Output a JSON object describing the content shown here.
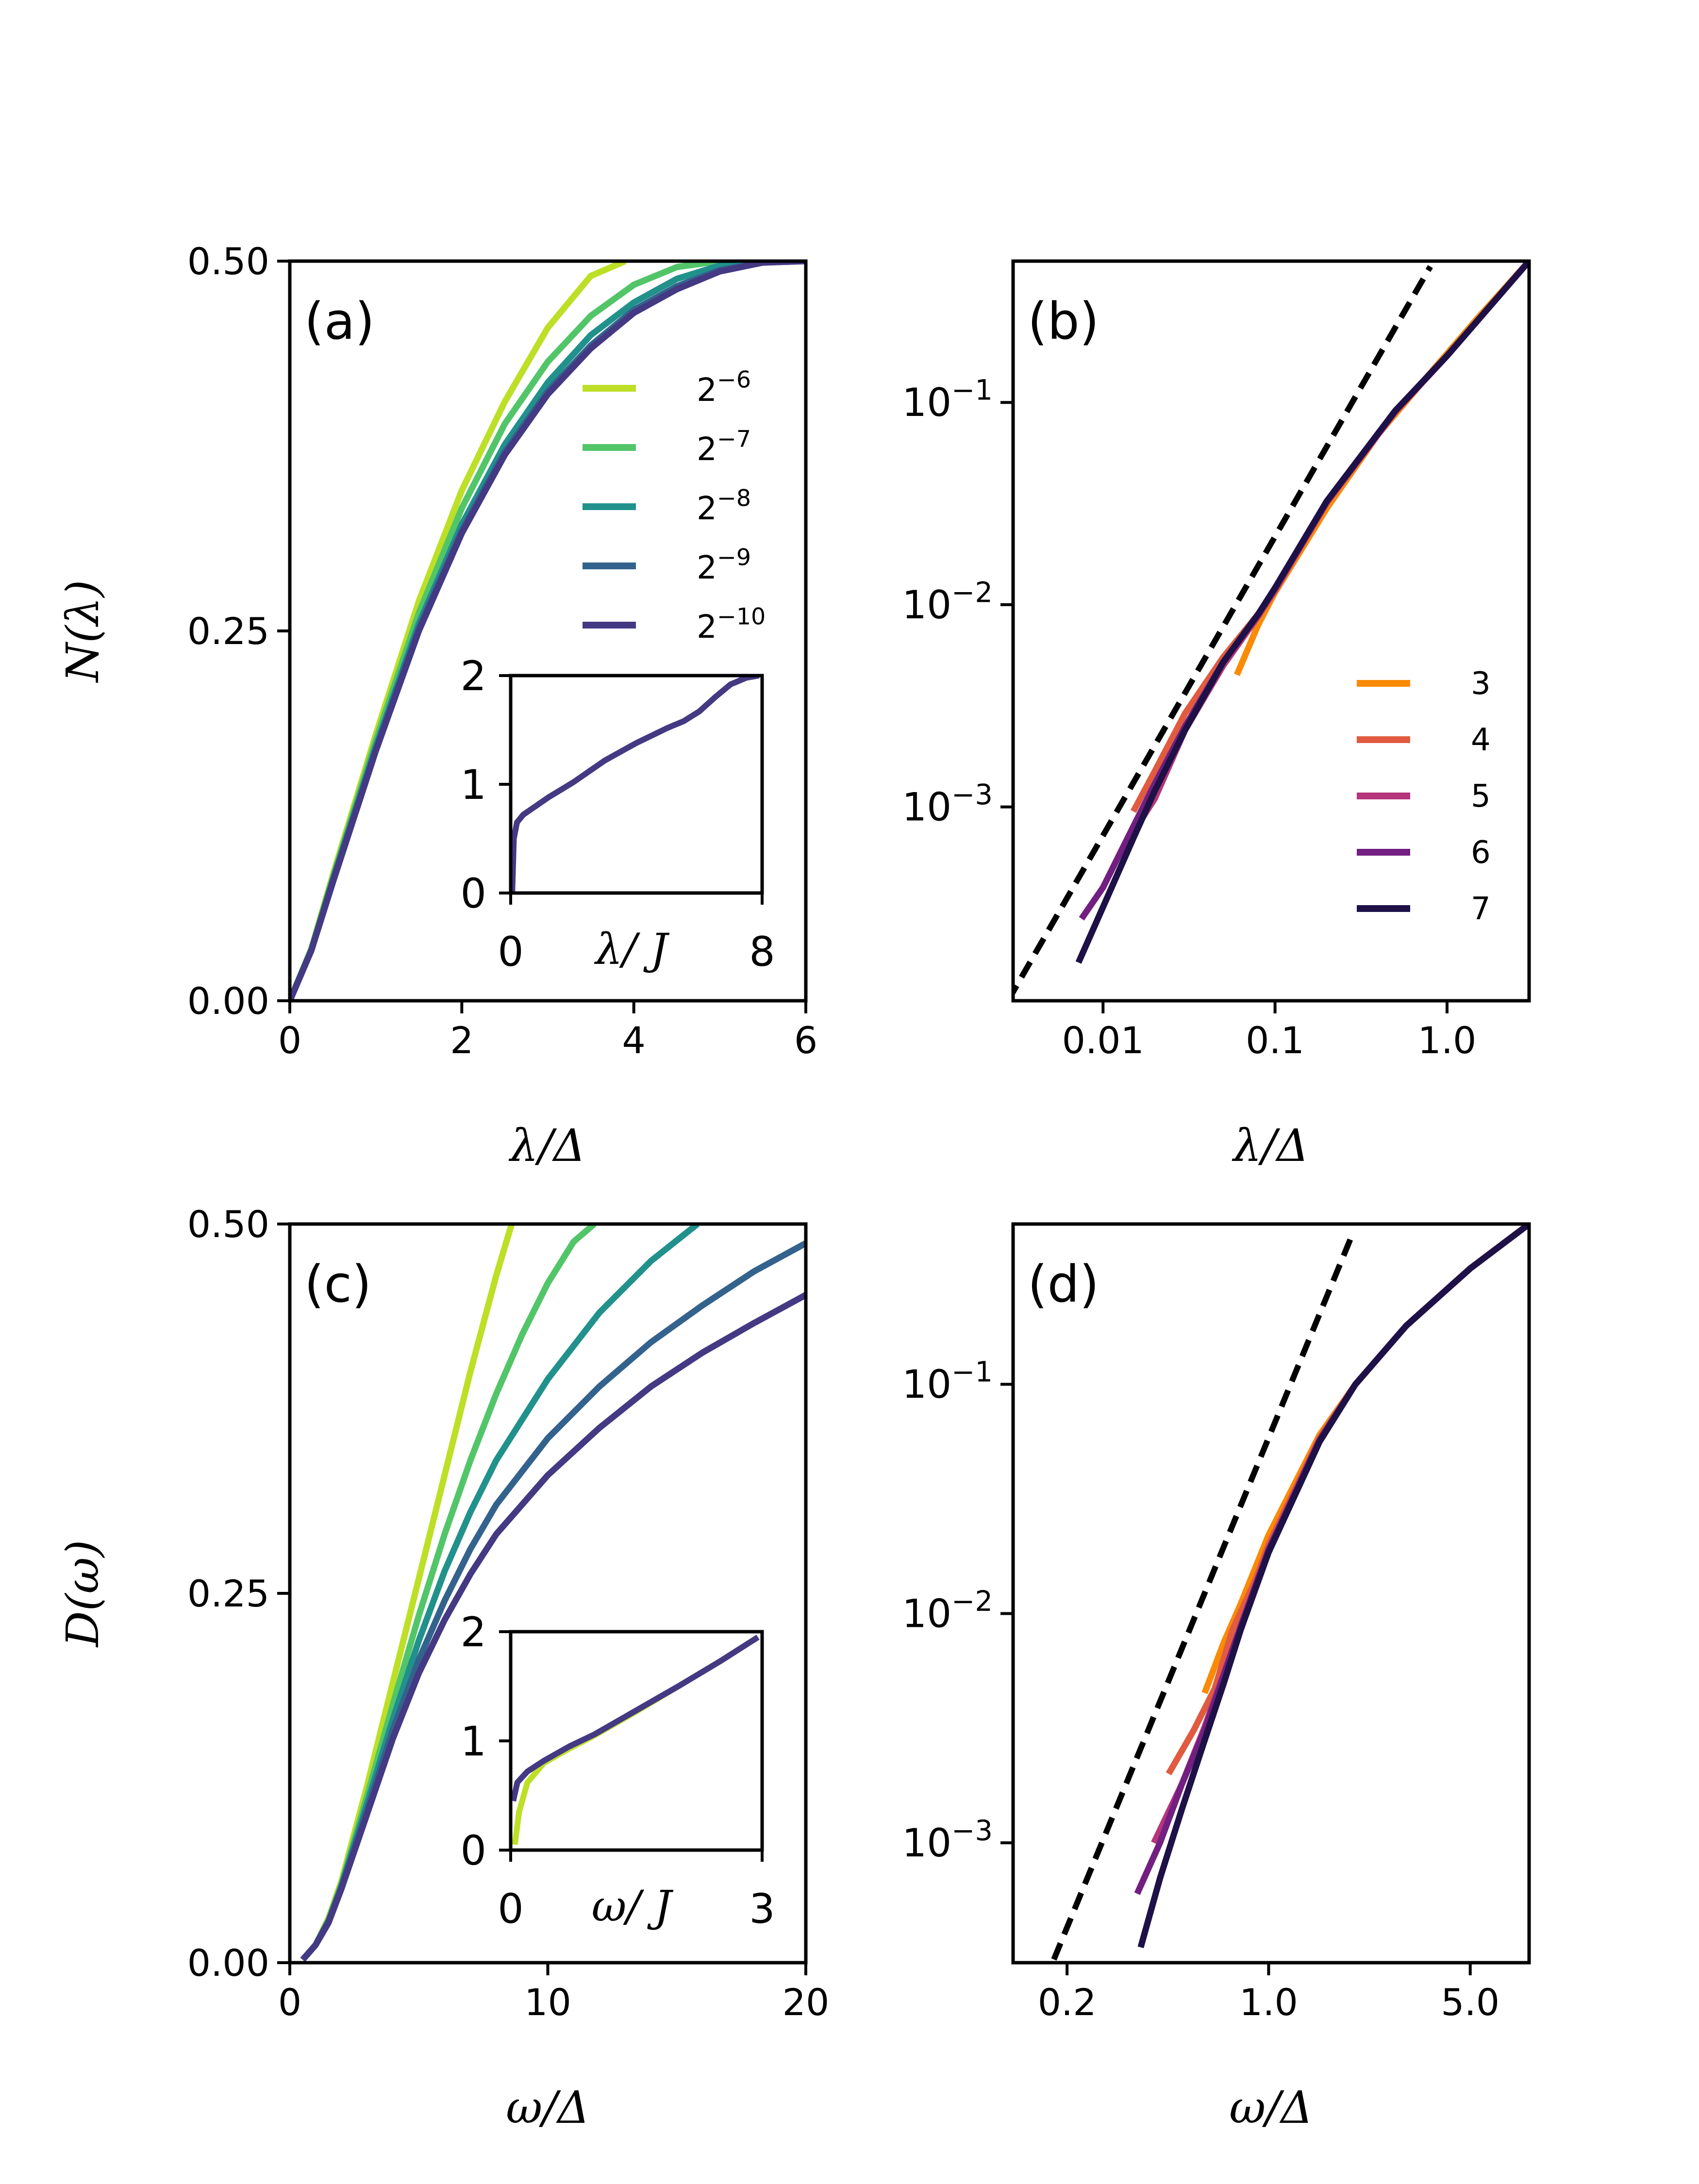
{
  "figure": {
    "panels": [
      {
        "id": "a",
        "panel_label": "(a)",
        "type": "line",
        "xscale": "linear",
        "yscale": "linear",
        "xlim": [
          0,
          6
        ],
        "ylim": [
          0,
          0.5
        ],
        "xticks": [
          0,
          2,
          4,
          6
        ],
        "xtick_labels": [
          "0",
          "2",
          "4",
          "6"
        ],
        "yticks": [
          0,
          0.25,
          0.5
        ],
        "ytick_labels": [
          "0.00",
          "0.25",
          "0.50"
        ],
        "xlabel": "λ/Δ",
        "ylabel": "N(λ)",
        "legend_position": "upper-right",
        "series": [
          {
            "name": "2^-6",
            "color": "#bddf26",
            "x": [
              0,
              0.25,
              0.5,
              1.0,
              1.5,
              2.0,
              2.5,
              3.0,
              3.5,
              3.9
            ],
            "y": [
              0,
              0.035,
              0.085,
              0.18,
              0.27,
              0.345,
              0.405,
              0.455,
              0.49,
              0.5
            ]
          },
          {
            "name": "2^-7",
            "color": "#52c569",
            "x": [
              0,
              0.25,
              0.5,
              1.0,
              1.5,
              2.0,
              2.5,
              3.0,
              3.5,
              4.0,
              4.5,
              5.0
            ],
            "y": [
              0,
              0.035,
              0.083,
              0.176,
              0.262,
              0.333,
              0.39,
              0.432,
              0.463,
              0.484,
              0.496,
              0.5
            ]
          },
          {
            "name": "2^-8",
            "color": "#21918c",
            "x": [
              0,
              0.25,
              0.5,
              1.0,
              1.5,
              2.0,
              2.5,
              3.0,
              3.5,
              4.0,
              4.5,
              5.0,
              5.5
            ],
            "y": [
              0,
              0.034,
              0.082,
              0.172,
              0.255,
              0.322,
              0.376,
              0.418,
              0.45,
              0.472,
              0.488,
              0.497,
              0.5
            ]
          },
          {
            "name": "2^-9",
            "color": "#33638d",
            "x": [
              0,
              0.25,
              0.5,
              1.0,
              1.5,
              2.0,
              2.5,
              3.0,
              3.5,
              4.0,
              4.5,
              5.0,
              5.5,
              6.0
            ],
            "y": [
              0,
              0.034,
              0.081,
              0.17,
              0.252,
              0.318,
              0.371,
              0.412,
              0.443,
              0.467,
              0.483,
              0.494,
              0.499,
              0.5
            ]
          },
          {
            "name": "2^-10",
            "color": "#443983",
            "x": [
              0,
              0.25,
              0.5,
              1.0,
              1.5,
              2.0,
              2.5,
              3.0,
              3.5,
              4.0,
              4.5,
              5.0,
              5.5,
              6.0
            ],
            "y": [
              0,
              0.034,
              0.08,
              0.169,
              0.25,
              0.316,
              0.369,
              0.41,
              0.441,
              0.465,
              0.481,
              0.493,
              0.499,
              0.5
            ]
          }
        ],
        "inset": {
          "xlim": [
            0,
            8
          ],
          "ylim": [
            0,
            2
          ],
          "xticks": [
            0,
            8
          ],
          "xtick_labels": [
            "0",
            "8"
          ],
          "yticks": [
            0,
            1,
            2
          ],
          "ytick_labels": [
            "0",
            "1",
            "2"
          ],
          "xlabel": "λ/ J",
          "series": [
            {
              "color": "#443983",
              "x": [
                0.05,
                0.1,
                0.2,
                0.4,
                0.8,
                1.2,
                1.6,
                2.0,
                2.5,
                3.0,
                3.5,
                4.0,
                4.5,
                5.0,
                5.5,
                6.0,
                6.5,
                7.0,
                7.5,
                7.9
              ],
              "y": [
                0,
                0.5,
                0.65,
                0.72,
                0.8,
                0.88,
                0.95,
                1.02,
                1.12,
                1.22,
                1.3,
                1.38,
                1.45,
                1.52,
                1.58,
                1.67,
                1.8,
                1.92,
                1.98,
                2.0
              ]
            }
          ]
        }
      },
      {
        "id": "b",
        "panel_label": "(b)",
        "type": "line",
        "xscale": "log",
        "yscale": "log",
        "xlim": [
          0.003,
          3.0
        ],
        "ylim": [
          0.00011,
          0.5
        ],
        "xticks": [
          0.01,
          0.1,
          1.0
        ],
        "xtick_labels": [
          "0.01",
          "0.1",
          "1.0"
        ],
        "yticks": [
          0.001,
          0.01,
          0.1
        ],
        "ytick_labels": [
          {
            "base": "10",
            "exp": "−3"
          },
          {
            "base": "10",
            "exp": "−2"
          },
          {
            "base": "10",
            "exp": "−1"
          }
        ],
        "xlabel": "λ/Δ",
        "legend_position": "lower-right",
        "reference_line": {
          "style": "dashed",
          "color": "#000000",
          "x": [
            0.0028,
            0.8
          ],
          "y": [
            0.00011,
            0.47
          ]
        },
        "series": [
          {
            "name": "3",
            "color": "#fb8a06",
            "x": [
              0.06,
              0.08,
              0.1,
              0.2,
              0.4,
              0.8,
              1.5,
              3.0
            ],
            "y": [
              0.0045,
              0.008,
              0.0115,
              0.03,
              0.07,
              0.14,
              0.26,
              0.5
            ]
          },
          {
            "name": "4",
            "color": "#e05b3f",
            "x": [
              0.015,
              0.02,
              0.03,
              0.05,
              0.08,
              0.1,
              0.2,
              0.5,
              1.0,
              3.0
            ],
            "y": [
              0.00095,
              0.0015,
              0.0029,
              0.0055,
              0.009,
              0.012,
              0.032,
              0.09,
              0.17,
              0.5
            ]
          },
          {
            "name": "5",
            "color": "#b5367a",
            "x": [
              0.015,
              0.02,
              0.03,
              0.05,
              0.08,
              0.1,
              0.2,
              0.5,
              1.0,
              3.0
            ],
            "y": [
              0.00075,
              0.0011,
              0.0024,
              0.005,
              0.0088,
              0.0118,
              0.032,
              0.09,
              0.17,
              0.5
            ]
          },
          {
            "name": "6",
            "color": "#721f81",
            "x": [
              0.0075,
              0.01,
              0.015,
              0.02,
              0.03,
              0.05,
              0.08,
              0.1,
              0.2,
              0.5,
              1.0,
              3.0
            ],
            "y": [
              0.00028,
              0.0004,
              0.0008,
              0.0013,
              0.0025,
              0.0052,
              0.009,
              0.0121,
              0.0325,
              0.091,
              0.17,
              0.5
            ]
          },
          {
            "name": "7",
            "color": "#1d1147",
            "x": [
              0.0072,
              0.01,
              0.015,
              0.02,
              0.03,
              0.05,
              0.08,
              0.1,
              0.2,
              0.5,
              1.0,
              3.0
            ],
            "y": [
              0.00017,
              0.00032,
              0.0007,
              0.0012,
              0.0024,
              0.0052,
              0.009,
              0.0121,
              0.0325,
              0.091,
              0.17,
              0.5
            ]
          }
        ]
      },
      {
        "id": "c",
        "panel_label": "(c)",
        "type": "line",
        "xscale": "linear",
        "yscale": "linear",
        "xlim": [
          0,
          20
        ],
        "ylim": [
          0,
          0.5
        ],
        "xticks": [
          0,
          10,
          20
        ],
        "xtick_labels": [
          "0",
          "10",
          "20"
        ],
        "yticks": [
          0,
          0.25,
          0.5
        ],
        "ytick_labels": [
          "0.00",
          "0.25",
          "0.50"
        ],
        "xlabel": "ω/Δ",
        "ylabel": "D(ω)",
        "series": [
          {
            "name": "2^-6",
            "color": "#bddf26",
            "x": [
              0.5,
              1,
              1.5,
              2,
              3,
              4,
              5,
              6,
              7,
              8,
              8.6
            ],
            "y": [
              0.002,
              0.012,
              0.03,
              0.055,
              0.12,
              0.19,
              0.26,
              0.33,
              0.4,
              0.465,
              0.5
            ]
          },
          {
            "name": "2^-7",
            "color": "#52c569",
            "x": [
              0.5,
              1,
              1.5,
              2,
              3,
              4,
              5,
              6,
              7,
              8,
              9,
              10,
              11,
              11.8
            ],
            "y": [
              0.002,
              0.012,
              0.029,
              0.053,
              0.113,
              0.175,
              0.235,
              0.29,
              0.34,
              0.385,
              0.425,
              0.46,
              0.488,
              0.5
            ]
          },
          {
            "name": "2^-8",
            "color": "#21918c",
            "x": [
              0.5,
              1,
              1.5,
              2,
              3,
              4,
              5,
              6,
              7,
              8,
              10,
              12,
              14,
              15.8
            ],
            "y": [
              0.002,
              0.012,
              0.028,
              0.052,
              0.108,
              0.165,
              0.218,
              0.265,
              0.305,
              0.34,
              0.395,
              0.44,
              0.475,
              0.5
            ]
          },
          {
            "name": "2^-9",
            "color": "#33638d",
            "x": [
              0.5,
              1,
              1.5,
              2,
              3,
              4,
              5,
              6,
              7,
              8,
              10,
              12,
              14,
              16,
              18,
              20
            ],
            "y": [
              0.002,
              0.012,
              0.028,
              0.051,
              0.104,
              0.158,
              0.205,
              0.245,
              0.28,
              0.31,
              0.355,
              0.39,
              0.42,
              0.445,
              0.468,
              0.487
            ]
          },
          {
            "name": "2^-10",
            "color": "#443983",
            "x": [
              0.5,
              1,
              1.5,
              2,
              3,
              4,
              5,
              6,
              7,
              8,
              10,
              12,
              14,
              16,
              18,
              20
            ],
            "y": [
              0.002,
              0.012,
              0.027,
              0.05,
              0.101,
              0.152,
              0.196,
              0.232,
              0.263,
              0.29,
              0.33,
              0.362,
              0.39,
              0.413,
              0.433,
              0.452
            ]
          }
        ],
        "inset": {
          "xlim": [
            0,
            3
          ],
          "ylim": [
            0,
            2
          ],
          "xticks": [
            0,
            3
          ],
          "xtick_labels": [
            "0",
            "3"
          ],
          "yticks": [
            0,
            1,
            2
          ],
          "ytick_labels": [
            "0",
            "1",
            "2"
          ],
          "xlabel": "ω/ J",
          "series": [
            {
              "color": "#bddf26",
              "x": [
                0.05,
                0.1,
                0.2,
                0.4,
                0.7,
                1.0,
                1.5,
                2.0,
                2.5,
                2.95
              ],
              "y": [
                0.05,
                0.35,
                0.62,
                0.8,
                0.93,
                1.05,
                1.27,
                1.5,
                1.73,
                1.95
              ]
            },
            {
              "color": "#443983",
              "x": [
                0.03,
                0.08,
                0.2,
                0.4,
                0.7,
                1.0,
                1.5,
                2.0,
                2.5,
                2.95
              ],
              "y": [
                0.45,
                0.62,
                0.72,
                0.82,
                0.95,
                1.06,
                1.28,
                1.5,
                1.73,
                1.95
              ]
            }
          ]
        }
      },
      {
        "id": "d",
        "panel_label": "(d)",
        "type": "line",
        "xscale": "log",
        "yscale": "log",
        "xlim": [
          0.13,
          8.0
        ],
        "ylim": [
          0.0003,
          0.5
        ],
        "xticks": [
          0.2,
          1.0,
          5.0
        ],
        "xtick_labels": [
          "0.2",
          "1.0",
          "5.0"
        ],
        "yticks": [
          0.001,
          0.01,
          0.1
        ],
        "ytick_labels": [
          {
            "base": "10",
            "exp": "−3"
          },
          {
            "base": "10",
            "exp": "−2"
          },
          {
            "base": "10",
            "exp": "−1"
          }
        ],
        "xlabel": "ω/Δ",
        "reference_line": {
          "style": "dashed",
          "color": "#000000",
          "x": [
            0.18,
            1.95
          ],
          "y": [
            0.00031,
            0.45
          ]
        },
        "series": [
          {
            "name": "3",
            "color": "#fb8a06",
            "x": [
              0.6,
              0.7,
              0.8,
              1.0,
              1.5,
              2.0,
              3.0,
              5.0,
              8.0
            ],
            "y": [
              0.0045,
              0.0075,
              0.011,
              0.022,
              0.06,
              0.1,
              0.18,
              0.32,
              0.5
            ]
          },
          {
            "name": "4",
            "color": "#e05b3f",
            "x": [
              0.45,
              0.55,
              0.65,
              0.75,
              0.9,
              1.0,
              1.5,
              2.0,
              3.0,
              5.0,
              8.0
            ],
            "y": [
              0.002,
              0.0031,
              0.0047,
              0.0085,
              0.014,
              0.02,
              0.058,
              0.1,
              0.18,
              0.32,
              0.5
            ]
          },
          {
            "name": "5",
            "color": "#b5367a",
            "x": [
              0.4,
              0.5,
              0.6,
              0.7,
              0.8,
              1.0,
              1.5,
              2.0,
              3.0,
              5.0,
              8.0
            ],
            "y": [
              0.001,
              0.0018,
              0.0032,
              0.0055,
              0.0088,
              0.019,
              0.057,
              0.1,
              0.18,
              0.32,
              0.5
            ]
          },
          {
            "name": "6",
            "color": "#721f81",
            "x": [
              0.35,
              0.42,
              0.5,
              0.6,
              0.7,
              0.8,
              1.0,
              1.5,
              2.0,
              3.0,
              5.0,
              8.0
            ],
            "y": [
              0.0006,
              0.001,
              0.0018,
              0.0031,
              0.0054,
              0.0088,
              0.019,
              0.057,
              0.1,
              0.18,
              0.32,
              0.5
            ]
          },
          {
            "name": "7",
            "color": "#1d1147",
            "x": [
              0.36,
              0.42,
              0.5,
              0.6,
              0.7,
              0.8,
              1.0,
              1.5,
              2.0,
              3.0,
              5.0,
              8.0
            ],
            "y": [
              0.00035,
              0.0007,
              0.0014,
              0.0028,
              0.005,
              0.0085,
              0.0185,
              0.056,
              0.1,
              0.18,
              0.32,
              0.5
            ]
          }
        ]
      }
    ]
  }
}
